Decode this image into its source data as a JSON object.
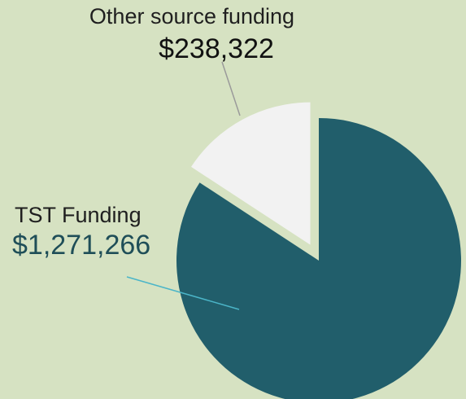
{
  "chart_data": {
    "type": "pie",
    "categories": [
      "TST Funding",
      "Other source funding"
    ],
    "values": [
      1271266,
      238322
    ],
    "value_labels": [
      "$1,271,266",
      "$238,322"
    ],
    "colors": [
      "#215e6b",
      "#f2f2f2"
    ],
    "exploded": [
      false,
      true
    ],
    "start_angle": 0,
    "direction": "clockwise"
  }
}
